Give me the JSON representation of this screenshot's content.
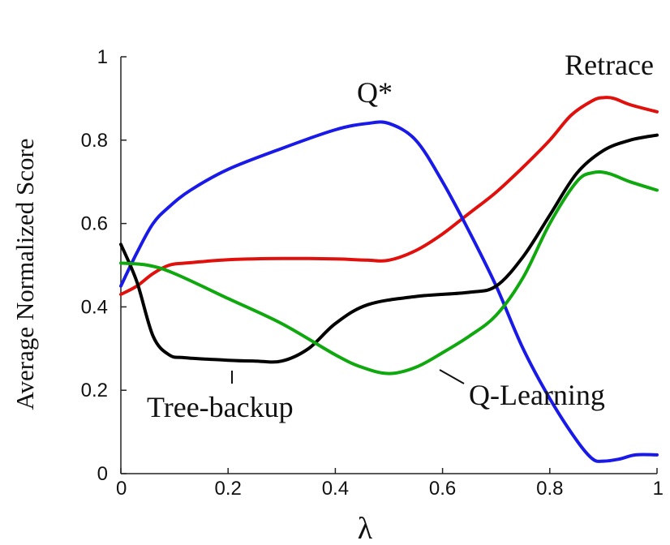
{
  "chart_data": {
    "type": "line",
    "title": "",
    "xlabel": "λ",
    "ylabel": "Average Normalized Score",
    "xlim": [
      0,
      1
    ],
    "ylim": [
      0,
      1
    ],
    "grid": false,
    "x_ticks": [
      "0",
      "0.2",
      "0.4",
      "0.6",
      "0.8",
      "1"
    ],
    "y_ticks": [
      "0",
      "0.2",
      "0.4",
      "0.6",
      "0.8",
      "1"
    ],
    "series": [
      {
        "name": "Retrace",
        "color": "#e0100c",
        "x": [
          0,
          0.03,
          0.06,
          0.09,
          0.12,
          0.2,
          0.3,
          0.4,
          0.46,
          0.5,
          0.55,
          0.6,
          0.65,
          0.7,
          0.75,
          0.8,
          0.84,
          0.88,
          0.9,
          0.92,
          0.95,
          1.0
        ],
        "y": [
          0.43,
          0.45,
          0.48,
          0.5,
          0.505,
          0.513,
          0.516,
          0.515,
          0.512,
          0.512,
          0.535,
          0.575,
          0.625,
          0.675,
          0.735,
          0.8,
          0.86,
          0.895,
          0.902,
          0.9,
          0.885,
          0.868
        ]
      },
      {
        "name": "Q*",
        "color": "#1a1ae8",
        "x": [
          0,
          0.03,
          0.06,
          0.09,
          0.13,
          0.2,
          0.3,
          0.4,
          0.46,
          0.5,
          0.55,
          0.6,
          0.65,
          0.7,
          0.75,
          0.8,
          0.85,
          0.88,
          0.9,
          0.93,
          0.96,
          1.0
        ],
        "y": [
          0.45,
          0.53,
          0.6,
          0.64,
          0.68,
          0.73,
          0.78,
          0.825,
          0.84,
          0.84,
          0.8,
          0.7,
          0.58,
          0.45,
          0.3,
          0.18,
          0.08,
          0.035,
          0.03,
          0.035,
          0.045,
          0.045
        ]
      },
      {
        "name": "Tree-backup",
        "color": "#000000",
        "x": [
          0,
          0.03,
          0.06,
          0.09,
          0.12,
          0.2,
          0.25,
          0.3,
          0.35,
          0.4,
          0.46,
          0.55,
          0.65,
          0.7,
          0.75,
          0.8,
          0.85,
          0.9,
          0.95,
          1.0
        ],
        "y": [
          0.55,
          0.46,
          0.33,
          0.285,
          0.278,
          0.272,
          0.27,
          0.27,
          0.3,
          0.36,
          0.405,
          0.425,
          0.435,
          0.45,
          0.52,
          0.62,
          0.72,
          0.775,
          0.8,
          0.812
        ]
      },
      {
        "name": "Q-Learning",
        "color": "#10a80f",
        "x": [
          0,
          0.05,
          0.1,
          0.2,
          0.3,
          0.4,
          0.45,
          0.5,
          0.55,
          0.6,
          0.65,
          0.7,
          0.75,
          0.8,
          0.85,
          0.88,
          0.91,
          0.95,
          1.0
        ],
        "y": [
          0.505,
          0.5,
          0.48,
          0.42,
          0.36,
          0.285,
          0.255,
          0.24,
          0.255,
          0.29,
          0.33,
          0.38,
          0.47,
          0.6,
          0.7,
          0.722,
          0.72,
          0.7,
          0.68
        ]
      }
    ],
    "annotations": [
      {
        "text": "Retrace"
      },
      {
        "text": "Q*"
      },
      {
        "text": "Tree-backup"
      },
      {
        "text": "Q-Learning"
      }
    ]
  }
}
